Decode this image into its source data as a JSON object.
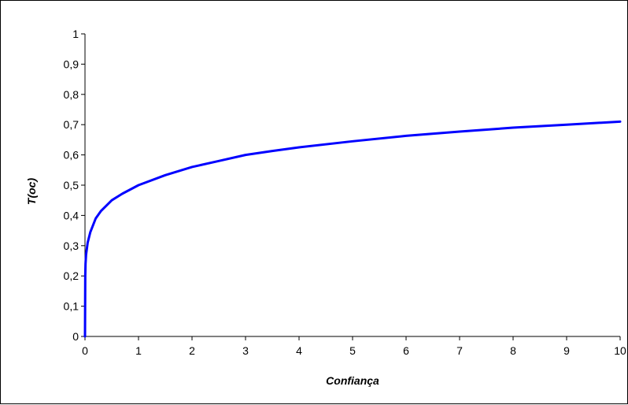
{
  "chart_data": {
    "type": "line",
    "title": "",
    "xlabel": "Confiança",
    "ylabel": "T(oc)",
    "xlim": [
      0,
      10
    ],
    "ylim": [
      0,
      1
    ],
    "x_ticks": [
      "0",
      "1",
      "2",
      "3",
      "4",
      "5",
      "6",
      "7",
      "8",
      "9",
      "10"
    ],
    "y_ticks": [
      "0",
      "0,1",
      "0,2",
      "0,3",
      "0,4",
      "0,5",
      "0,6",
      "0,7",
      "0,8",
      "0,9",
      "1"
    ],
    "grid": false,
    "legend": "none",
    "series": [
      {
        "color": "#0000ff",
        "x": [
          0,
          0.005,
          0.01,
          0.02,
          0.05,
          0.1,
          0.2,
          0.3,
          0.5,
          0.7,
          1,
          1.5,
          2,
          2.5,
          3,
          3.5,
          4,
          5,
          6,
          7,
          8,
          9,
          10
        ],
        "y": [
          0,
          0.2,
          0.24,
          0.27,
          0.31,
          0.345,
          0.39,
          0.415,
          0.45,
          0.472,
          0.5,
          0.533,
          0.56,
          0.58,
          0.6,
          0.613,
          0.625,
          0.645,
          0.663,
          0.677,
          0.69,
          0.7,
          0.71
        ]
      }
    ]
  }
}
